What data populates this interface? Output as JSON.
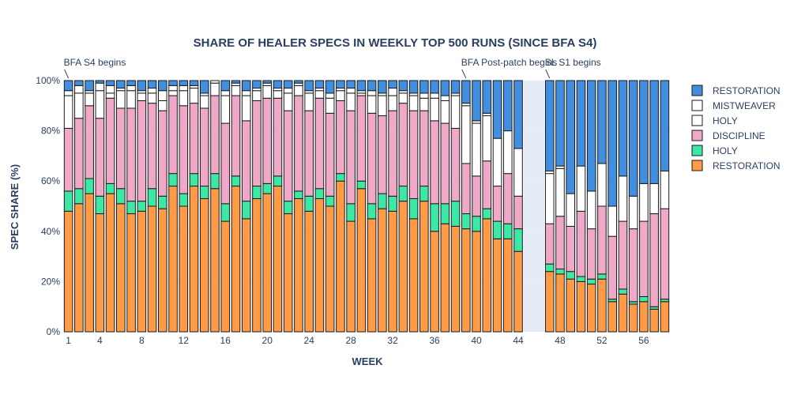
{
  "chart_data": {
    "type": "bar",
    "stacked": true,
    "title": "SHARE OF HEALER SPECS IN WEEKLY TOP 500 RUNS (SINCE BFA S4)",
    "xlabel": "WEEK",
    "ylabel": "SPEC SHARE (%)",
    "ylim": [
      0,
      100
    ],
    "xlim": [
      0.5,
      58.5
    ],
    "x_ticks": [
      1,
      4,
      8,
      12,
      16,
      20,
      24,
      28,
      32,
      36,
      40,
      44,
      48,
      52,
      56
    ],
    "y_ticks": [
      0,
      20,
      40,
      60,
      80,
      100
    ],
    "y_tick_labels": [
      "0%",
      "20%",
      "40%",
      "60%",
      "80%",
      "100%"
    ],
    "gap_region": [
      44.5,
      46.5
    ],
    "weeks": [
      1,
      2,
      3,
      4,
      5,
      6,
      7,
      8,
      9,
      10,
      11,
      12,
      13,
      14,
      15,
      16,
      17,
      18,
      19,
      20,
      21,
      22,
      23,
      24,
      25,
      26,
      27,
      28,
      29,
      30,
      31,
      32,
      33,
      34,
      35,
      36,
      37,
      38,
      39,
      40,
      41,
      42,
      43,
      44,
      47,
      48,
      49,
      50,
      51,
      52,
      53,
      54,
      55,
      56,
      57,
      58
    ],
    "series": [
      {
        "name": "RESTORATION",
        "color": "#ff9a47",
        "values": [
          48,
          51,
          55,
          47,
          55,
          51,
          47,
          48,
          50,
          49,
          58,
          50,
          58,
          53,
          57,
          44,
          58,
          45,
          53,
          55,
          58,
          47,
          53,
          48,
          53,
          50,
          60,
          44,
          57,
          45,
          49,
          48,
          52,
          45,
          52,
          40,
          43,
          42,
          41,
          40,
          45,
          37,
          37,
          32,
          24,
          23,
          21,
          20,
          19,
          21,
          12,
          15,
          11,
          12,
          9,
          12
        ]
      },
      {
        "name": "MISTWEAVER",
        "color": "#3de8a4",
        "values": [
          8,
          6,
          6,
          7,
          4,
          6,
          5,
          4,
          7,
          5,
          5,
          5,
          5,
          5,
          6,
          7,
          4,
          7,
          5,
          4,
          4,
          5,
          3,
          6,
          4,
          4,
          3,
          7,
          3,
          6,
          6,
          6,
          6,
          8,
          6,
          11,
          8,
          10,
          6,
          6,
          4,
          7,
          6,
          9,
          3,
          2,
          3,
          2,
          2,
          2,
          1,
          2,
          1,
          2,
          1,
          1
        ]
      },
      {
        "name": "HOLY",
        "color": "#f0a8c8",
        "values": [
          25,
          28,
          29,
          31,
          34,
          32,
          37,
          40,
          34,
          34,
          31,
          35,
          28,
          31,
          31,
          32,
          32,
          32,
          34,
          34,
          31,
          36,
          38,
          34,
          36,
          33,
          29,
          37,
          34,
          36,
          31,
          34,
          33,
          35,
          30,
          33,
          32,
          29,
          20,
          16,
          19,
          14,
          20,
          13,
          16,
          21,
          18,
          26,
          20,
          27,
          25,
          27,
          29,
          30,
          37,
          36
        ]
      },
      {
        "name": "DISCIPLINE",
        "color": "#ffffff",
        "values": [
          13,
          10,
          5,
          11,
          2,
          7,
          7,
          3,
          4,
          4,
          2,
          6,
          6,
          5,
          5,
          11,
          4,
          10,
          4,
          5,
          3,
          7,
          4,
          7,
          3,
          6,
          4,
          7,
          1,
          7,
          8,
          6,
          4,
          6,
          5,
          9,
          9,
          13,
          23,
          21,
          18,
          19,
          17,
          19,
          20,
          19,
          13,
          18,
          15,
          17,
          12,
          18,
          13,
          15,
          12,
          15
        ]
      },
      {
        "name": "HOLY",
        "color": "#ffffff",
        "values": [
          2,
          3,
          1,
          3,
          3,
          1,
          2,
          1,
          2,
          4,
          2,
          2,
          1,
          1,
          1,
          2,
          1,
          2,
          1,
          1,
          1,
          2,
          1,
          1,
          1,
          2,
          1,
          2,
          1,
          2,
          1,
          3,
          1,
          1,
          2,
          2,
          2,
          1,
          1,
          1,
          1,
          0,
          0,
          0,
          1,
          1,
          0,
          0,
          0,
          0,
          0,
          0,
          0,
          0,
          0,
          0
        ]
      },
      {
        "name": "RESTORATION",
        "color": "#418fde",
        "values": [
          4,
          2,
          4,
          1,
          2,
          3,
          2,
          4,
          3,
          4,
          2,
          2,
          2,
          5,
          0,
          4,
          1,
          4,
          3,
          1,
          3,
          3,
          1,
          4,
          3,
          5,
          3,
          3,
          4,
          4,
          5,
          3,
          4,
          5,
          5,
          5,
          6,
          5,
          9,
          16,
          13,
          23,
          20,
          27,
          36,
          34,
          45,
          34,
          44,
          33,
          50,
          38,
          46,
          41,
          41,
          36
        ]
      }
    ],
    "annotations": [
      {
        "text": "BFA S4 begins",
        "x": 1
      },
      {
        "text": "BFA Post-patch begins",
        "x": 39
      },
      {
        "text": "SL S1 begins",
        "x": 47
      }
    ],
    "legend": {
      "placement": "right",
      "entries": [
        "RESTORATION",
        "HOLY",
        "DISCIPLINE",
        "HOLY",
        "MISTWEAVER",
        "RESTORATION"
      ],
      "order": [
        5,
        4,
        3,
        2,
        1,
        0
      ]
    }
  }
}
